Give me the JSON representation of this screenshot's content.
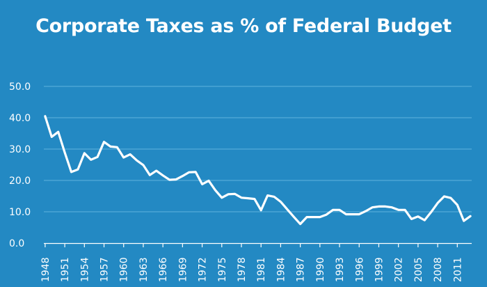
{
  "chart_data": {
    "type": "line",
    "title": "Corporate Taxes as % of Federal Budget",
    "xlabel": "",
    "ylabel": "",
    "ylim": [
      0,
      50
    ],
    "yticks": [
      "0.0",
      "10.0",
      "20.0",
      "30.0",
      "40.0",
      "50.0"
    ],
    "xticks": [
      "1948",
      "1951",
      "1954",
      "1957",
      "1960",
      "1963",
      "1966",
      "1969",
      "1972",
      "1975",
      "1978",
      "1981",
      "1984",
      "1987",
      "1990",
      "1993",
      "1996",
      "1999",
      "2002",
      "2005",
      "2008",
      "2011"
    ],
    "grid": true,
    "colors": {
      "background": "#2389c3",
      "line": "#ffffff",
      "grid": "#5fb3de"
    },
    "series": [
      {
        "x": [
          1948,
          1949,
          1950,
          1951,
          1952,
          1953,
          1954,
          1955,
          1956,
          1957,
          1958,
          1959,
          1960,
          1961,
          1962,
          1963,
          1964,
          1965,
          1966,
          1967,
          1968,
          1969,
          1970,
          1971,
          1972,
          1973,
          1974,
          1975,
          1976,
          1977,
          1978,
          1979,
          1980,
          1981,
          1982,
          1983,
          1984,
          1985,
          1986,
          1987,
          1988,
          1989,
          1990,
          1991,
          1992,
          1993,
          1994,
          1995,
          1996,
          1997,
          1998,
          1999,
          2000,
          2001,
          2002,
          2003,
          2004,
          2005,
          2006,
          2007,
          2008,
          2009,
          2010,
          2011,
          2012,
          2013
        ],
        "values": [
          40.5,
          33.9,
          35.5,
          28.9,
          22.7,
          23.5,
          28.7,
          26.6,
          27.5,
          32.3,
          30.8,
          30.6,
          27.3,
          28.3,
          26.4,
          24.9,
          21.7,
          23.1,
          21.6,
          20.2,
          20.3,
          21.4,
          22.6,
          22.7,
          18.8,
          19.9,
          16.9,
          14.5,
          15.6,
          15.7,
          14.5,
          14.3,
          14.1,
          10.5,
          15.2,
          14.8,
          13.2,
          10.8,
          8.4,
          6.1,
          8.3,
          8.3,
          8.3,
          9.1,
          10.6,
          10.6,
          9.2,
          9.2,
          9.2,
          10.2,
          11.4,
          11.7,
          11.7,
          11.4,
          10.6,
          10.6,
          7.7,
          8.5,
          7.3,
          9.9,
          12.8,
          14.9,
          14.4,
          12.2,
          7.1,
          8.6
        ]
      }
    ]
  }
}
